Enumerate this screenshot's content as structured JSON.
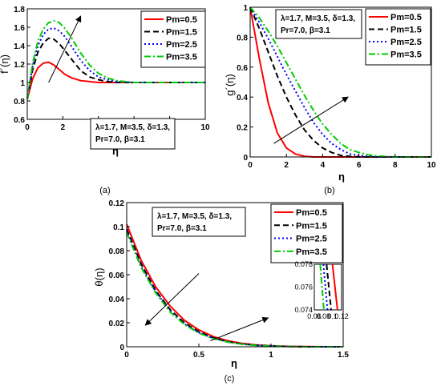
{
  "chart_data": [
    {
      "panel_label": "(a)",
      "type": "line",
      "xlabel": "η",
      "ylabel": "f´(η)",
      "xlim": [
        0,
        10
      ],
      "ylim": [
        0.6,
        1.8
      ],
      "xticks": [
        "0",
        "2",
        "4",
        "6",
        "8",
        "10"
      ],
      "yticks": [
        "0.6",
        "0.8",
        "1",
        "1.2",
        "1.4",
        "1.6",
        "1.8"
      ],
      "legend_position": "top-right",
      "annotation": [
        "λ=1.7, M=3.5, δ=1.3,",
        "Pr=7.0, β=3.1"
      ],
      "x": [
        0,
        0.3,
        0.6,
        0.9,
        1.2,
        1.5,
        1.8,
        2.1,
        2.5,
        3,
        3.5,
        4,
        4.5,
        5,
        6,
        7,
        8,
        9,
        10
      ],
      "series": [
        {
          "name": "Pm=0.5",
          "values": [
            0.82,
            1.04,
            1.16,
            1.21,
            1.22,
            1.19,
            1.14,
            1.09,
            1.05,
            1.02,
            1.01,
            1.0,
            1.0,
            1.0,
            1.0,
            1.0,
            1.0,
            1.0,
            1.0
          ]
        },
        {
          "name": "Pm=1.5",
          "values": [
            0.82,
            1.14,
            1.33,
            1.43,
            1.48,
            1.47,
            1.42,
            1.35,
            1.25,
            1.13,
            1.06,
            1.03,
            1.01,
            1.0,
            1.0,
            1.0,
            1.0,
            1.0,
            1.0
          ]
        },
        {
          "name": "Pm=2.5",
          "values": [
            0.82,
            1.18,
            1.4,
            1.52,
            1.58,
            1.59,
            1.56,
            1.5,
            1.39,
            1.24,
            1.13,
            1.06,
            1.03,
            1.01,
            1.0,
            1.0,
            1.0,
            1.0,
            1.0
          ]
        },
        {
          "name": "Pm=3.5",
          "values": [
            0.82,
            1.21,
            1.45,
            1.58,
            1.65,
            1.67,
            1.65,
            1.59,
            1.48,
            1.32,
            1.19,
            1.1,
            1.05,
            1.02,
            1.0,
            1.0,
            1.0,
            1.0,
            1.0
          ]
        }
      ],
      "arrow": {
        "from": [
          1.2,
          1.0
        ],
        "to": [
          3.0,
          1.72
        ]
      }
    },
    {
      "panel_label": "(b)",
      "type": "line",
      "xlabel": "η",
      "ylabel": "g´(η)",
      "xlim": [
        0,
        10
      ],
      "ylim": [
        0,
        1
      ],
      "xticks": [
        "0",
        "2",
        "4",
        "6",
        "8",
        "10"
      ],
      "yticks": [
        "0",
        "0.2",
        "0.4",
        "0.6",
        "0.8",
        "1"
      ],
      "legend_position": "top-right",
      "annotation": [
        "λ=1.7, M=3.5, δ=1.3,",
        "Pr=7.0, β=3.1"
      ],
      "x": [
        0,
        0.5,
        1,
        1.5,
        2,
        2.5,
        3,
        3.5,
        4,
        4.5,
        5,
        5.5,
        6,
        6.5,
        7,
        7.5,
        8,
        9,
        10
      ],
      "series": [
        {
          "name": "Pm=0.5",
          "values": [
            1.0,
            0.66,
            0.36,
            0.16,
            0.06,
            0.02,
            0.005,
            0,
            0,
            0,
            0,
            0,
            0,
            0,
            0,
            0,
            0,
            0,
            0
          ]
        },
        {
          "name": "Pm=1.5",
          "values": [
            1.0,
            0.86,
            0.7,
            0.54,
            0.4,
            0.28,
            0.18,
            0.11,
            0.06,
            0.03,
            0.01,
            0.004,
            0,
            0,
            0,
            0,
            0,
            0,
            0
          ]
        },
        {
          "name": "Pm=2.5",
          "values": [
            1.0,
            0.9,
            0.79,
            0.67,
            0.55,
            0.44,
            0.33,
            0.23,
            0.15,
            0.09,
            0.05,
            0.02,
            0.01,
            0.004,
            0,
            0,
            0,
            0,
            0
          ]
        },
        {
          "name": "Pm=3.5",
          "values": [
            1.0,
            0.93,
            0.84,
            0.74,
            0.63,
            0.52,
            0.41,
            0.31,
            0.22,
            0.15,
            0.09,
            0.05,
            0.03,
            0.015,
            0.007,
            0.003,
            0,
            0,
            0
          ]
        }
      ],
      "arrow": {
        "from": [
          1.3,
          0.09
        ],
        "to": [
          5.4,
          0.4
        ]
      }
    },
    {
      "panel_label": "(c)",
      "type": "line",
      "xlabel": "η",
      "ylabel": "θ(η)",
      "xlim": [
        0,
        1.5
      ],
      "ylim": [
        0,
        0.12
      ],
      "xticks": [
        "0",
        "0.5",
        "1",
        "1.5"
      ],
      "yticks": [
        "0",
        "0.02",
        "0.04",
        "0.06",
        "0.08",
        "0.1",
        "0.12"
      ],
      "legend_position": "top-right",
      "annotation": [
        "λ=1.7, M=3.5, δ=1.3,",
        "Pr=7.0, β=3.1"
      ],
      "x": [
        0,
        0.1,
        0.2,
        0.3,
        0.4,
        0.5,
        0.6,
        0.7,
        0.8,
        0.9,
        1.0,
        1.1,
        1.2,
        1.3,
        1.4,
        1.5
      ],
      "series": [
        {
          "name": "Pm=0.5",
          "values": [
            0.102,
            0.072,
            0.05,
            0.034,
            0.022,
            0.014,
            0.0085,
            0.005,
            0.0028,
            0.0015,
            0.0008,
            0.0004,
            0.0002,
            0.0001,
            0,
            0
          ]
        },
        {
          "name": "Pm=1.5",
          "values": [
            0.098,
            0.069,
            0.047,
            0.031,
            0.02,
            0.0125,
            0.0075,
            0.0043,
            0.0024,
            0.0013,
            0.0007,
            0.0003,
            0.0001,
            0,
            0,
            0
          ]
        },
        {
          "name": "Pm=2.5",
          "values": [
            0.097,
            0.067,
            0.046,
            0.03,
            0.019,
            0.0118,
            0.007,
            0.004,
            0.0022,
            0.0012,
            0.0006,
            0.0003,
            0.0001,
            0,
            0,
            0
          ]
        },
        {
          "name": "Pm=3.5",
          "values": [
            0.095,
            0.066,
            0.045,
            0.029,
            0.0185,
            0.0114,
            0.0068,
            0.0039,
            0.0021,
            0.0011,
            0.0006,
            0.0003,
            0.0001,
            0,
            0,
            0
          ]
        }
      ],
      "arrow": {
        "from": [
          0.5,
          0.061
        ],
        "to": [
          0.13,
          0.018
        ]
      },
      "inset": {
        "xlim": [
          0.06,
          0.12
        ],
        "ylim": [
          0.074,
          0.078
        ],
        "xticks": [
          "0.06",
          "0.08",
          "0.1",
          "0.12"
        ],
        "yticks": [
          "0.074",
          "0.076",
          "0.078"
        ],
        "series_lines": [
          [
            [
              0.1,
              0.078
            ],
            [
              0.111,
              0.074
            ]
          ],
          [
            [
              0.087,
              0.078
            ],
            [
              0.097,
              0.074
            ]
          ],
          [
            [
              0.08,
              0.078
            ],
            [
              0.089,
              0.074
            ]
          ],
          [
            [
              0.073,
              0.078
            ],
            [
              0.081,
              0.074
            ]
          ]
        ]
      },
      "zoom_link": {
        "from": [
          0.58,
          0.005
        ],
        "to": [
          0.98,
          0.024
        ]
      }
    }
  ],
  "legend_entries": [
    "Pm=0.5",
    "Pm=1.5",
    "Pm=2.5",
    "Pm=3.5"
  ],
  "series_styles": [
    {
      "color": "#ff0000",
      "dash": "none"
    },
    {
      "color": "#000000",
      "dash": "7,4"
    },
    {
      "color": "#0000ff",
      "dash": "2,3"
    },
    {
      "color": "#00cc00",
      "dash": "8,3,2,3"
    }
  ]
}
